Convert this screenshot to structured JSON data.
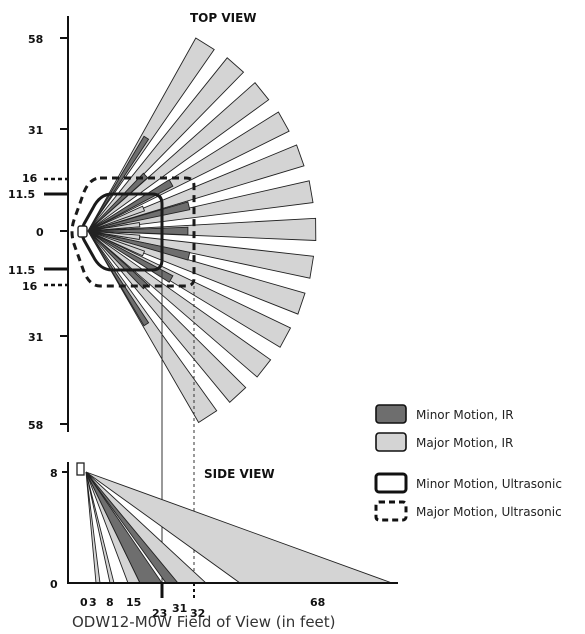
{
  "top_view": {
    "title": "TOP VIEW",
    "ticks": [
      "58",
      "31",
      "16",
      "11.5",
      "0",
      "11.5",
      "16",
      "31",
      "58"
    ]
  },
  "side_view": {
    "title": "SIDE VIEW",
    "y_ticks": [
      "8",
      "0"
    ],
    "x_ticks": [
      "0",
      "3",
      "8",
      "15",
      "23",
      "31",
      "32",
      "68"
    ]
  },
  "legend": [
    {
      "label": "Minor Motion, IR",
      "fill": "#6e6e6e",
      "style": "solid-swatch"
    },
    {
      "label": "Major Motion, IR",
      "fill": "#d4d4d4",
      "style": "solid-swatch"
    },
    {
      "label": "Minor Motion, Ultrasonic",
      "fill": "none",
      "style": "solid-outline"
    },
    {
      "label": "Major Motion, Ultrasonic",
      "fill": "none",
      "style": "dashed-outline"
    }
  ],
  "caption": "ODW12-M0W Field of View (in feet)",
  "colors": {
    "minor_ir": "#6e6e6e",
    "major_ir": "#d4d4d4",
    "outline": "#1a1a1a"
  }
}
